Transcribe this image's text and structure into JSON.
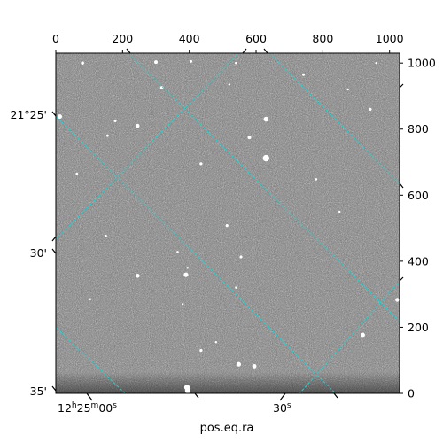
{
  "chart_data": {
    "type": "image",
    "xlabel": "pos.eq.ra",
    "ylabel": "",
    "pixel_axes": {
      "top_ticks": [
        "0",
        "200",
        "400",
        "600",
        "800",
        "1000"
      ],
      "top_values": [
        0,
        200,
        400,
        600,
        800,
        1000
      ],
      "right_ticks": [
        "0",
        "200",
        "400",
        "600",
        "800",
        "1000"
      ],
      "right_values": [
        0,
        200,
        400,
        600,
        800,
        1000
      ],
      "xlim": [
        0,
        1030
      ],
      "ylim": [
        0,
        1030
      ]
    },
    "world_axes": {
      "ra_ticks": [
        "12h25m00s",
        "30s"
      ],
      "dec_ticks": [
        "21°25'",
        "30'",
        "35'"
      ]
    },
    "grid": true,
    "grid_color": "#20d0d0",
    "image_colormap": "gray",
    "stars": [
      {
        "x": 80,
        "y": 1000,
        "r": 1.8
      },
      {
        "x": 300,
        "y": 1003,
        "r": 2
      },
      {
        "x": 405,
        "y": 1005,
        "r": 1.5
      },
      {
        "x": 540,
        "y": 1000,
        "r": 1.3
      },
      {
        "x": 742,
        "y": 965,
        "r": 1.5
      },
      {
        "x": 875,
        "y": 920,
        "r": 1.2
      },
      {
        "x": 960,
        "y": 1000,
        "r": 1.2
      },
      {
        "x": 318,
        "y": 925,
        "r": 2
      },
      {
        "x": 520,
        "y": 935,
        "r": 1.2
      },
      {
        "x": 12,
        "y": 838,
        "r": 2.5
      },
      {
        "x": 245,
        "y": 810,
        "r": 2.2
      },
      {
        "x": 178,
        "y": 825,
        "r": 1.6
      },
      {
        "x": 155,
        "y": 780,
        "r": 1.4
      },
      {
        "x": 630,
        "y": 830,
        "r": 2.8
      },
      {
        "x": 942,
        "y": 860,
        "r": 1.6
      },
      {
        "x": 580,
        "y": 775,
        "r": 2
      },
      {
        "x": 630,
        "y": 712,
        "r": 3.7
      },
      {
        "x": 435,
        "y": 695,
        "r": 1.6
      },
      {
        "x": 63,
        "y": 665,
        "r": 1.3
      },
      {
        "x": 780,
        "y": 648,
        "r": 1.3
      },
      {
        "x": 850,
        "y": 550,
        "r": 1.2
      },
      {
        "x": 513,
        "y": 508,
        "r": 1.6
      },
      {
        "x": 150,
        "y": 477,
        "r": 1.3
      },
      {
        "x": 365,
        "y": 428,
        "r": 1.3
      },
      {
        "x": 555,
        "y": 413,
        "r": 1.6
      },
      {
        "x": 395,
        "y": 380,
        "r": 1.2
      },
      {
        "x": 245,
        "y": 356,
        "r": 2.3
      },
      {
        "x": 390,
        "y": 359,
        "r": 2.6
      },
      {
        "x": 540,
        "y": 320,
        "r": 1.2
      },
      {
        "x": 380,
        "y": 270,
        "r": 1.2
      },
      {
        "x": 103,
        "y": 285,
        "r": 1.2
      },
      {
        "x": 1023,
        "y": 283,
        "r": 2.2
      },
      {
        "x": 920,
        "y": 177,
        "r": 2.4
      },
      {
        "x": 480,
        "y": 155,
        "r": 1.2
      },
      {
        "x": 435,
        "y": 130,
        "r": 1.6
      },
      {
        "x": 548,
        "y": 88,
        "r": 2.6
      },
      {
        "x": 595,
        "y": 82,
        "r": 2.4
      },
      {
        "x": 393,
        "y": 18,
        "r": 3.2
      },
      {
        "x": 395,
        "y": 8,
        "r": 3
      }
    ],
    "grid_lines": [
      {
        "x1": 0,
        "y1": 840,
        "x2": 850,
        "y2": -12
      },
      {
        "x1": 0,
        "y1": 200,
        "x2": 220,
        "y2": -12
      },
      {
        "x1": 0,
        "y1": 465,
        "x2": 560,
        "y2": 1042
      },
      {
        "x1": 720,
        "y1": -12,
        "x2": 1030,
        "y2": 340
      },
      {
        "x1": 205,
        "y1": 1042,
        "x2": 1030,
        "y2": 218
      },
      {
        "x1": 630,
        "y1": 1042,
        "x2": 1030,
        "y2": 633
      }
    ]
  },
  "colors": {
    "frame": "#000000",
    "background": "#ffffff",
    "image_mid": "#7d7d7d"
  }
}
